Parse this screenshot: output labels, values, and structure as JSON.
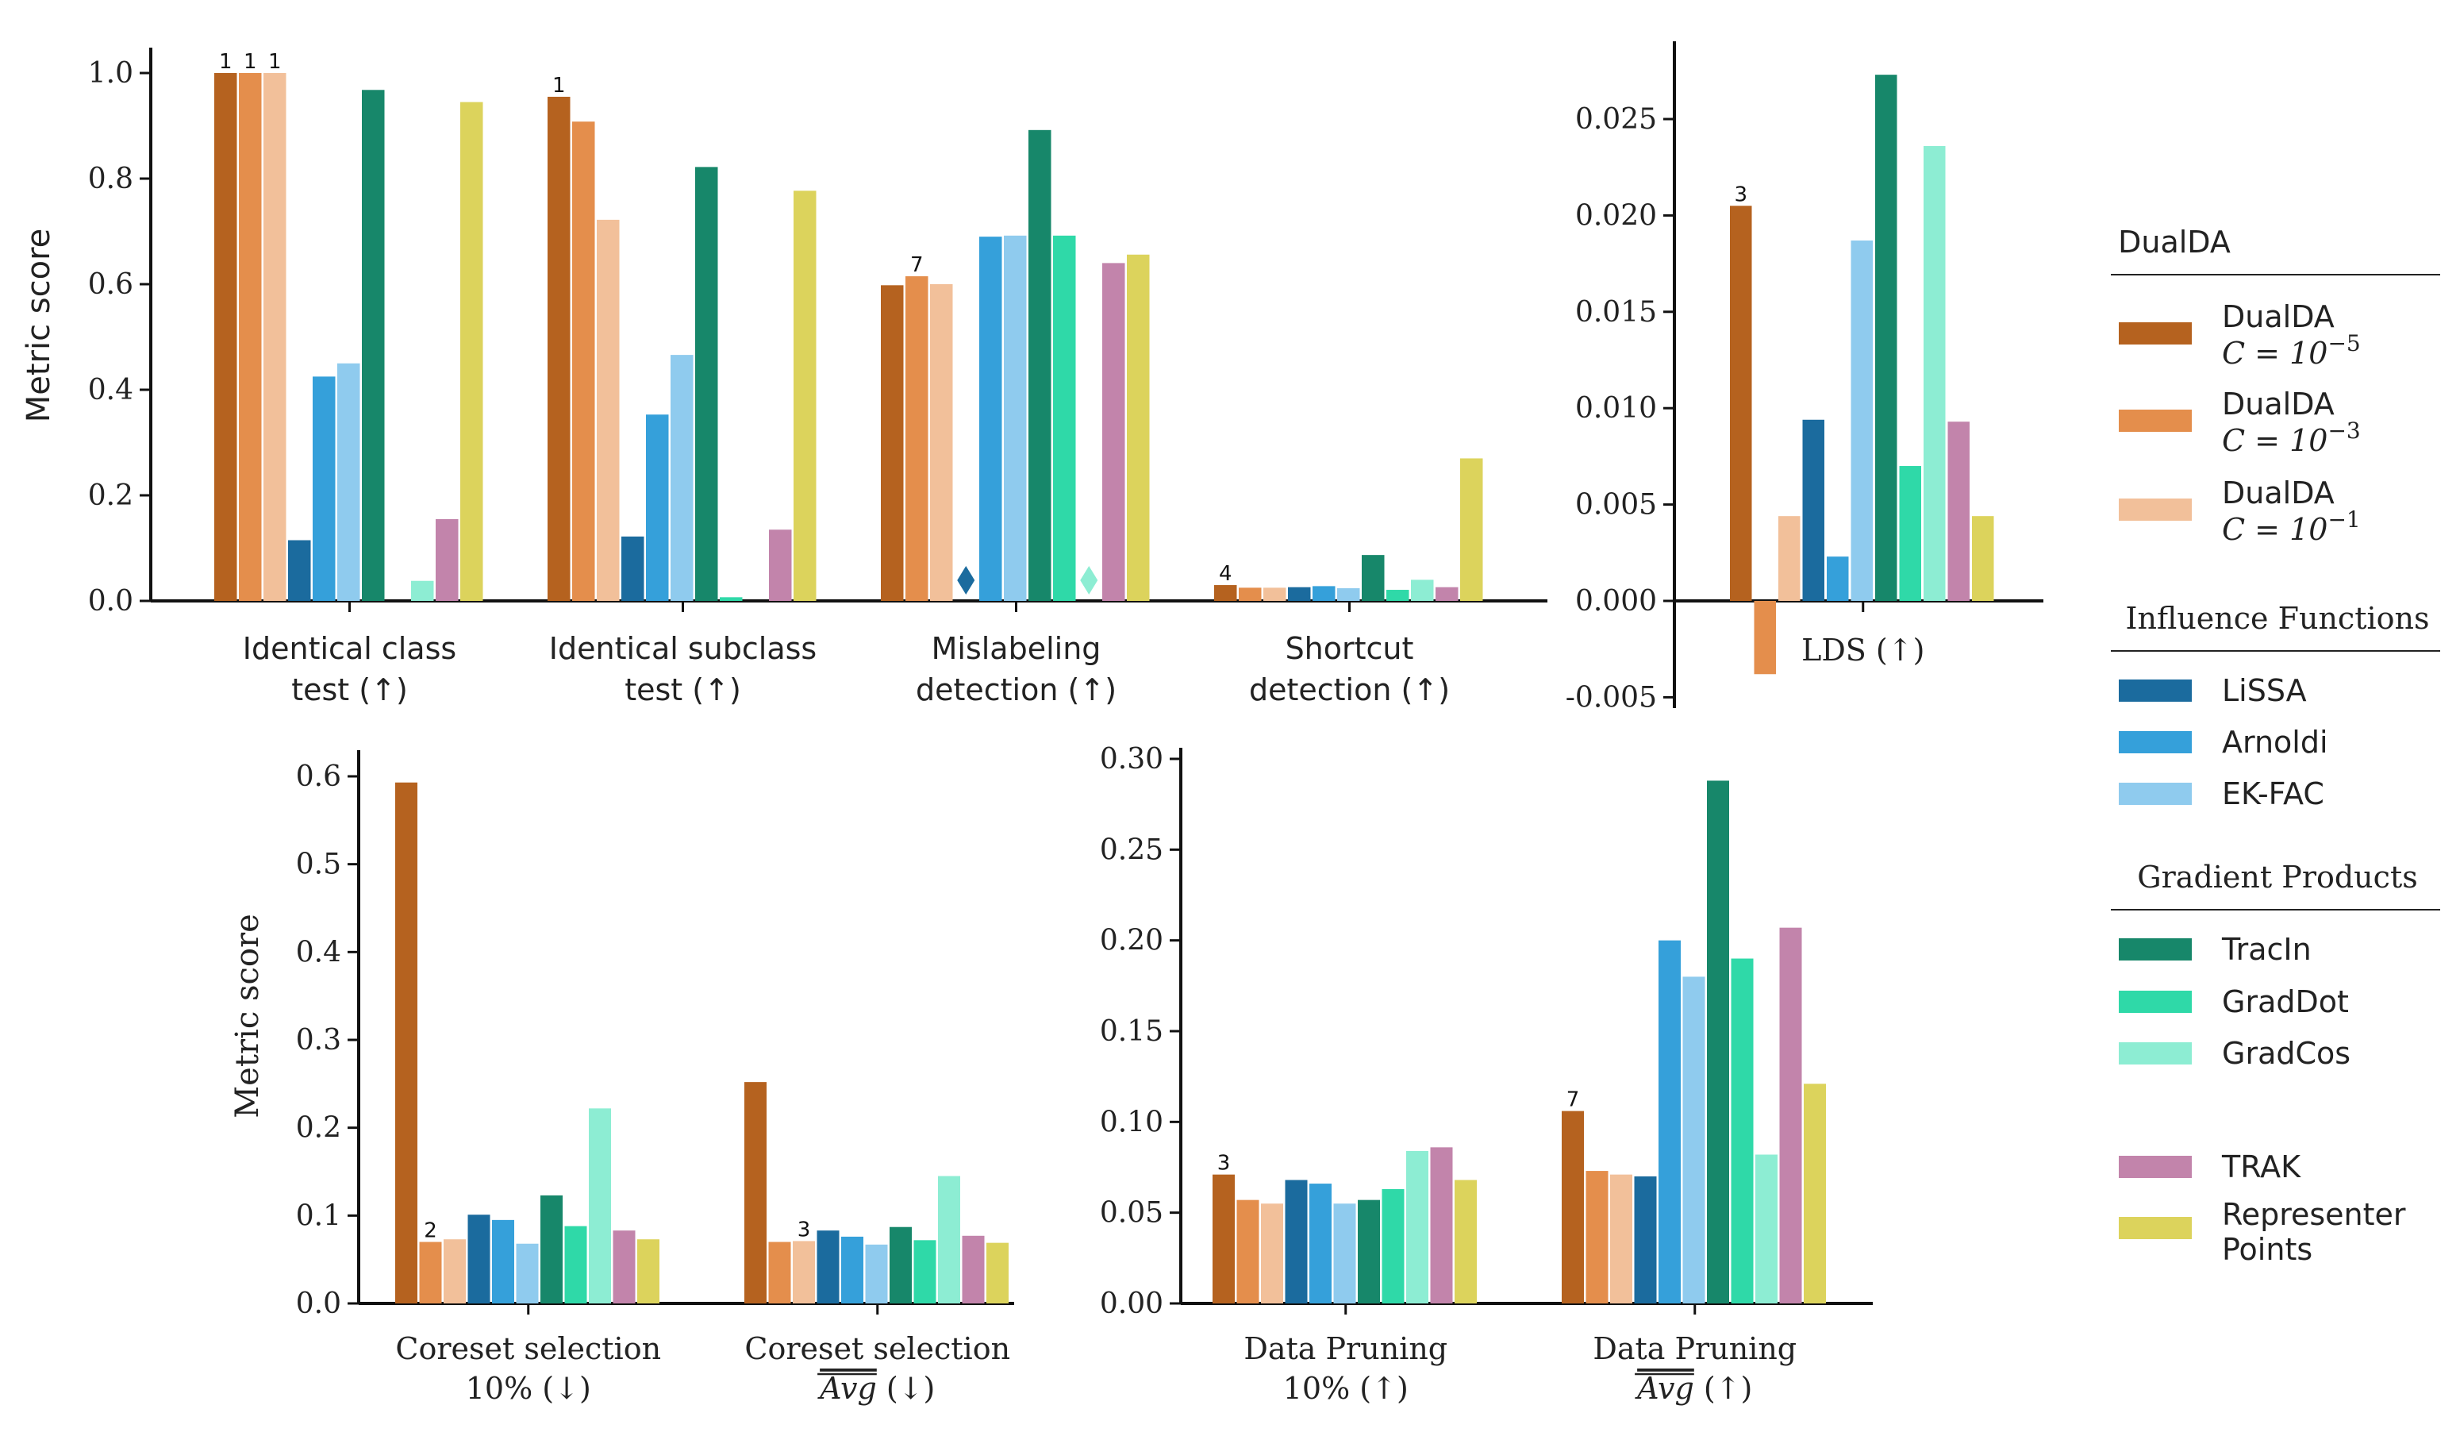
{
  "methods": [
    {
      "key": "dualda_1e-5",
      "label": "DualDA",
      "sub": "C = 10^−5",
      "color": "#B5621F"
    },
    {
      "key": "dualda_1e-3",
      "label": "DualDA",
      "sub": "C = 10^−3",
      "color": "#E48E4C"
    },
    {
      "key": "dualda_1e-1",
      "label": "DualDA",
      "sub": "C = 10^−1",
      "color": "#F2C09A"
    },
    {
      "key": "lissa",
      "label": "LiSSA",
      "color": "#1B6B9E"
    },
    {
      "key": "arnoldi",
      "label": "Arnoldi",
      "color": "#35A0DA"
    },
    {
      "key": "ekfac",
      "label": "EK-FAC",
      "color": "#8FCBEE"
    },
    {
      "key": "tracin",
      "label": "TracIn",
      "color": "#17876A"
    },
    {
      "key": "graddot",
      "label": "GradDot",
      "color": "#2FD9A8"
    },
    {
      "key": "gradcos",
      "label": "GradCos",
      "color": "#8DEDD3"
    },
    {
      "key": "trak",
      "label": "TRAK",
      "color": "#C284AB"
    },
    {
      "key": "representer",
      "label": "Representer Points",
      "color": "#DCD35C"
    }
  ],
  "legend": {
    "groups": [
      {
        "title": "DualDA",
        "entries": [
          {
            "label": "DualDA",
            "math": "C = 10",
            "exp": "−5",
            "color": "#B5621F"
          },
          {
            "label": "DualDA",
            "math": "C = 10",
            "exp": "−3",
            "color": "#E48E4C"
          },
          {
            "label": "DualDA",
            "math": "C = 10",
            "exp": "−1",
            "color": "#F2C09A"
          }
        ]
      },
      {
        "title": "Influence Functions",
        "entries": [
          {
            "label": "LiSSA",
            "color": "#1B6B9E"
          },
          {
            "label": "Arnoldi",
            "color": "#35A0DA"
          },
          {
            "label": "EK-FAC",
            "color": "#8FCBEE"
          }
        ]
      },
      {
        "title": "Gradient Products",
        "entries": [
          {
            "label": "TracIn",
            "color": "#17876A"
          },
          {
            "label": "GradDot",
            "color": "#2FD9A8"
          },
          {
            "label": "GradCos",
            "color": "#8DEDD3"
          }
        ]
      },
      {
        "title": "",
        "entries": [
          {
            "label": "TRAK",
            "color": "#C284AB"
          },
          {
            "label": "Representer",
            "label2": "Points",
            "color": "#DCD35C"
          }
        ]
      }
    ]
  },
  "chart_data": [
    {
      "type": "bar",
      "id": "top-left",
      "ylabel": "Metric score",
      "ylim": [
        0,
        1.0
      ],
      "yticks": [
        "0.0",
        "0.2",
        "0.4",
        "0.6",
        "0.8",
        "1.0"
      ],
      "ytick_values": [
        0,
        0.2,
        0.4,
        0.6,
        0.8,
        1.0
      ],
      "categories": [
        {
          "line1": "Identical class",
          "line2": "test (↑)"
        },
        {
          "line1": "Identical subclass",
          "line2": "test (↑)"
        },
        {
          "line1": "Mislabeling",
          "line2": "detection (↑)"
        },
        {
          "line1": "Shortcut",
          "line2": "detection (↑)"
        }
      ],
      "values": [
        [
          1.0,
          1.0,
          1.0,
          0.115,
          0.425,
          0.45,
          0.968,
          null,
          0.038,
          0.155,
          0.945
        ],
        [
          0.955,
          0.908,
          0.722,
          0.122,
          0.353,
          0.466,
          0.822,
          0.007,
          null,
          0.135,
          0.777
        ],
        [
          0.598,
          0.615,
          0.6,
          null,
          0.69,
          0.692,
          0.892,
          0.692,
          null,
          0.64,
          0.656
        ],
        [
          0.03,
          0.025,
          0.025,
          0.026,
          0.028,
          0.024,
          0.087,
          0.021,
          0.04,
          0.026,
          0.27
        ]
      ],
      "annotations": [
        {
          "cat": 0,
          "bar": 0,
          "text": "1"
        },
        {
          "cat": 0,
          "bar": 1,
          "text": "1"
        },
        {
          "cat": 0,
          "bar": 2,
          "text": "1"
        },
        {
          "cat": 1,
          "bar": 0,
          "text": "1"
        },
        {
          "cat": 2,
          "bar": 1,
          "text": "7"
        },
        {
          "cat": 3,
          "bar": 0,
          "text": "4"
        }
      ],
      "markers": [
        {
          "cat": 2,
          "bar": 3,
          "shape": "diamond"
        },
        {
          "cat": 2,
          "bar": 8,
          "shape": "diamond"
        }
      ]
    },
    {
      "type": "bar",
      "id": "top-right",
      "ylabel": "",
      "ylim": [
        -0.005,
        0.029
      ],
      "yticks": [
        "-0.005",
        "0.000",
        "0.005",
        "0.010",
        "0.015",
        "0.020",
        "0.025"
      ],
      "ytick_values": [
        -0.005,
        0,
        0.005,
        0.01,
        0.015,
        0.02,
        0.025
      ],
      "categories": [
        {
          "line1": "LDS (↑)",
          "line2": ""
        }
      ],
      "values": [
        [
          0.0205,
          -0.0038,
          0.0044,
          0.0094,
          0.0023,
          0.0187,
          0.0273,
          0.007,
          0.0236,
          0.0093,
          0.0044
        ]
      ],
      "annotations": [
        {
          "cat": 0,
          "bar": 0,
          "text": "3"
        }
      ],
      "markers": []
    },
    {
      "type": "bar",
      "id": "bottom-left",
      "ylabel": "Metric score",
      "ylim": [
        0,
        0.62
      ],
      "yticks": [
        "0.0",
        "0.1",
        "0.2",
        "0.3",
        "0.4",
        "0.5",
        "0.6"
      ],
      "ytick_values": [
        0,
        0.1,
        0.2,
        0.3,
        0.4,
        0.5,
        0.6
      ],
      "categories": [
        {
          "line1": "Coreset selection",
          "line2": "10% (↓)"
        },
        {
          "line1": "Coreset selection",
          "line2": "Avg (↓)",
          "overline": "Avg"
        }
      ],
      "values": [
        [
          0.593,
          0.07,
          0.073,
          0.101,
          0.095,
          0.068,
          0.123,
          0.088,
          0.222,
          0.083,
          0.073
        ],
        [
          0.252,
          0.07,
          0.071,
          0.083,
          0.076,
          0.067,
          0.087,
          0.072,
          0.145,
          0.077,
          0.069
        ]
      ],
      "annotations": [
        {
          "cat": 0,
          "bar": 1,
          "text": "2"
        },
        {
          "cat": 1,
          "bar": 2,
          "text": "3"
        }
      ],
      "markers": []
    },
    {
      "type": "bar",
      "id": "bottom-right",
      "ylabel": "",
      "ylim": [
        0,
        0.3
      ],
      "yticks": [
        "0.00",
        "0.05",
        "0.10",
        "0.15",
        "0.20",
        "0.25",
        "0.30"
      ],
      "ytick_values": [
        0,
        0.05,
        0.1,
        0.15,
        0.2,
        0.25,
        0.3
      ],
      "categories": [
        {
          "line1": "Data Pruning",
          "line2": "10% (↑)"
        },
        {
          "line1": "Data Pruning",
          "line2": "Avg (↑)",
          "overline": "Avg"
        }
      ],
      "values": [
        [
          0.071,
          0.057,
          0.055,
          0.068,
          0.066,
          0.055,
          0.057,
          0.063,
          0.084,
          0.086,
          0.068
        ],
        [
          0.106,
          0.073,
          0.071,
          0.07,
          0.2,
          0.18,
          0.288,
          0.19,
          0.082,
          0.207,
          0.121
        ]
      ],
      "annotations": [
        {
          "cat": 0,
          "bar": 0,
          "text": "3"
        },
        {
          "cat": 1,
          "bar": 0,
          "text": "7"
        }
      ],
      "markers": []
    }
  ]
}
